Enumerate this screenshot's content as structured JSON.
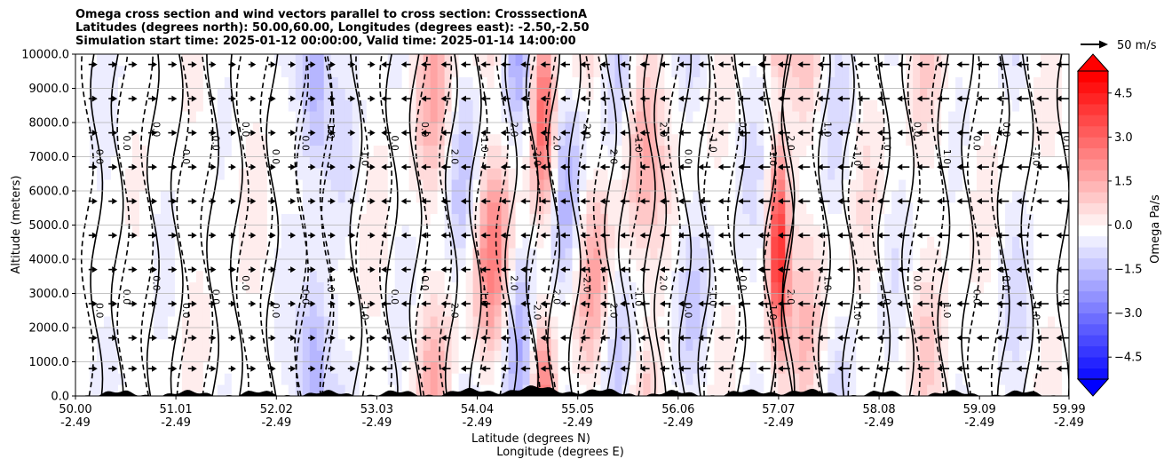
{
  "chart_data": {
    "type": "heatmap",
    "title_lines": [
      "Omega cross section and wind vectors parallel to cross section: CrosssectionA",
      "Latitudes (degrees north): 50.00,60.00, Longitudes (degrees east): -2.50,-2.50",
      "Simulation start time: 2025-01-12 00:00:00, Valid time: 2025-01-14 14:00:00"
    ],
    "ylabel": "Altitude (meters)",
    "xlabel_lines": [
      "Latitude (degrees N)",
      "Longitude (degrees E)"
    ],
    "ylim": [
      0,
      10000
    ],
    "xlim": [
      50.0,
      59.99
    ],
    "y_ticks": [
      0,
      1000,
      2000,
      3000,
      4000,
      5000,
      6000,
      7000,
      8000,
      9000,
      10000
    ],
    "y_tick_labels": [
      "0.0",
      "1000.0",
      "2000.0",
      "3000.0",
      "4000.0",
      "5000.0",
      "6000.0",
      "7000.0",
      "8000.0",
      "9000.0",
      "10000.0"
    ],
    "x_ticks": [
      50.0,
      51.01,
      52.02,
      53.03,
      54.04,
      55.05,
      56.06,
      57.07,
      58.08,
      59.09,
      59.99
    ],
    "x_tick_labels": [
      {
        "lat": "50.00",
        "lon": "-2.49"
      },
      {
        "lat": "51.01",
        "lon": "-2.49"
      },
      {
        "lat": "52.02",
        "lon": "-2.49"
      },
      {
        "lat": "53.03",
        "lon": "-2.49"
      },
      {
        "lat": "54.04",
        "lon": "-2.49"
      },
      {
        "lat": "55.05",
        "lon": "-2.49"
      },
      {
        "lat": "56.06",
        "lon": "-2.49"
      },
      {
        "lat": "57.07",
        "lon": "-2.49"
      },
      {
        "lat": "58.08",
        "lon": "-2.49"
      },
      {
        "lat": "59.09",
        "lon": "-2.49"
      },
      {
        "lat": "59.99",
        "lon": "-2.49"
      }
    ],
    "grid": "horizontal",
    "colormap": "bwr",
    "colorbar": {
      "label": "Omega Pa/s",
      "range": [
        -5.25,
        5.25
      ],
      "ticks": [
        4.5,
        3.0,
        1.5,
        0.0,
        -1.5,
        -3.0,
        -4.5
      ],
      "tick_labels": [
        "4.5",
        "3.0",
        "1.5",
        "0.0",
        "−1.5",
        "−3.0",
        "−4.5"
      ],
      "extend": "both"
    },
    "quiver_key": {
      "label": "50 m/s"
    },
    "omega_columns": [
      {
        "lat": 50.05,
        "w": 0.18,
        "v": 0.2
      },
      {
        "lat": 50.3,
        "w": 0.2,
        "v": -0.5
      },
      {
        "lat": 50.6,
        "w": 0.2,
        "v": 0.3
      },
      {
        "lat": 50.9,
        "w": 0.2,
        "v": -0.4
      },
      {
        "lat": 51.2,
        "w": 0.2,
        "v": 0.4
      },
      {
        "lat": 51.5,
        "w": 0.2,
        "v": -0.3
      },
      {
        "lat": 51.8,
        "w": 0.2,
        "v": 0.5
      },
      {
        "lat": 52.1,
        "w": 0.2,
        "v": -0.4
      },
      {
        "lat": 52.4,
        "w": 0.15,
        "v": -1.5
      },
      {
        "lat": 52.7,
        "w": 0.2,
        "v": -0.8
      },
      {
        "lat": 53.0,
        "w": 0.2,
        "v": 0.6
      },
      {
        "lat": 53.3,
        "w": 0.2,
        "v": -0.6
      },
      {
        "lat": 53.6,
        "w": 0.2,
        "v": 2.0
      },
      {
        "lat": 53.9,
        "w": 0.2,
        "v": -1.5
      },
      {
        "lat": 54.2,
        "w": 0.2,
        "v": 3.0
      },
      {
        "lat": 54.45,
        "w": 0.18,
        "v": -2.0
      },
      {
        "lat": 54.7,
        "w": 0.12,
        "v": 3.5
      },
      {
        "lat": 54.95,
        "w": 0.18,
        "v": -1.8
      },
      {
        "lat": 55.2,
        "w": 0.2,
        "v": 2.2
      },
      {
        "lat": 55.45,
        "w": 0.2,
        "v": -1.5
      },
      {
        "lat": 55.7,
        "w": 0.2,
        "v": 1.8
      },
      {
        "lat": 55.95,
        "w": 0.2,
        "v": 0.5
      },
      {
        "lat": 56.2,
        "w": 0.2,
        "v": -1.2
      },
      {
        "lat": 56.5,
        "w": 0.2,
        "v": 0.6
      },
      {
        "lat": 56.8,
        "w": 0.2,
        "v": -0.8
      },
      {
        "lat": 57.07,
        "w": 0.1,
        "v": 4.5
      },
      {
        "lat": 57.35,
        "w": 0.2,
        "v": 1.5
      },
      {
        "lat": 57.65,
        "w": 0.2,
        "v": -1.0
      },
      {
        "lat": 57.95,
        "w": 0.2,
        "v": 0.8
      },
      {
        "lat": 58.25,
        "w": 0.2,
        "v": -0.7
      },
      {
        "lat": 58.55,
        "w": 0.2,
        "v": 1.2
      },
      {
        "lat": 58.85,
        "w": 0.2,
        "v": -0.4
      },
      {
        "lat": 59.15,
        "w": 0.2,
        "v": 0.5
      },
      {
        "lat": 59.45,
        "w": 0.2,
        "v": -0.9
      },
      {
        "lat": 59.75,
        "w": 0.2,
        "v": 0.4
      }
    ],
    "contour_labels": [
      "0.0",
      "1.0",
      "-1.0",
      "2.0",
      "-2.0"
    ],
    "wind_vectors": [
      {
        "lat_from": 50.0,
        "lat_to": 51.2,
        "direction": "east",
        "speed": 8
      },
      {
        "lat_from": 51.2,
        "lat_to": 53.0,
        "direction": "east",
        "speed": 5
      },
      {
        "lat_from": 53.0,
        "lat_to": 56.0,
        "direction": "west",
        "speed": 10
      },
      {
        "lat_from": 56.0,
        "lat_to": 59.99,
        "direction": "west",
        "speed": 16
      }
    ]
  }
}
